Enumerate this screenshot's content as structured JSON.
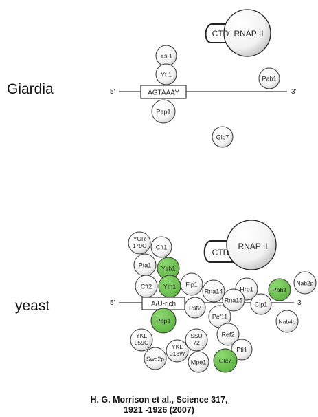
{
  "labels": {
    "giardia": "Giardia",
    "yeast": "yeast",
    "citation_line1": "H. G.  Morrison et al.,  Science  317,",
    "citation_line2": "1921 -1926 (2007)"
  },
  "giardia": {
    "five_prime": "5'",
    "three_prime": "3'",
    "motif": "AGTAAAY",
    "ctd": "CTD",
    "rnap": "RNAP II",
    "proteins": {
      "ys1": "Ys 1",
      "yt1": "Yt 1",
      "pap1": "Pap1",
      "pab1": "Pab1",
      "glc7": "Glc7"
    }
  },
  "yeast": {
    "five_prime": "5'",
    "three_prime": "3'",
    "motif": "A/U-rich",
    "ctd": "CTD",
    "rnap": "RNAP II",
    "proteins": {
      "yor179c_1": "YOR",
      "yor179c_2": "179C",
      "cft1": "Cft1",
      "pta1": "Pta1",
      "ysh1": "Ysh1",
      "cft2": "Cft2",
      "yth1": "Yth1",
      "fip1": "Fip1",
      "rna14": "Rna14",
      "hrp1": "Hrp1",
      "pab1": "Pab1",
      "nab2p": "Nab2p",
      "psf2": "Psf2",
      "rna15": "Rna15",
      "clp1": "Clp1",
      "pap1": "Pap1",
      "pcf11": "Pcf11",
      "nab4p": "Nab4p",
      "ykl059c_1": "YKL",
      "ykl059c_2": "059C",
      "ssu72_1": "SSU",
      "ssu72_2": "72",
      "ref2": "Ref2",
      "ykl018w_1": "YKL",
      "ykl018w_2": "018W",
      "pti1": "Pti1",
      "swd2p": "Swd2p",
      "mpe1": "Mpe1",
      "glc7": "Glc7"
    }
  },
  "colors": {
    "highlight_green": "#6cc14e",
    "protein_fill": "#ffffff",
    "stroke": "#333333",
    "rnap_shade": "#cfcfcf"
  }
}
